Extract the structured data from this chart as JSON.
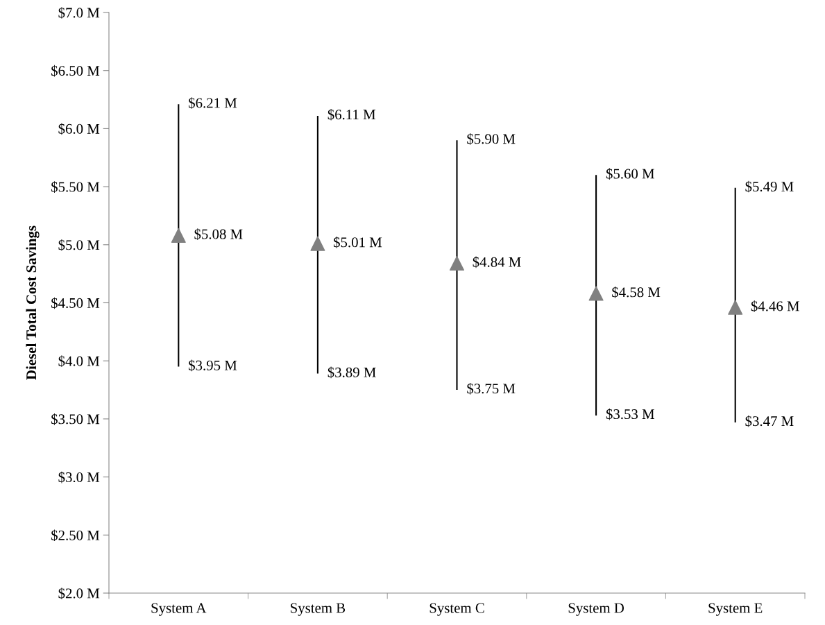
{
  "chart_data": {
    "type": "scatter",
    "ylabel": "Diesel Total Cost Savings",
    "categories": [
      "System A",
      "System B",
      "System C",
      "System D",
      "System E"
    ],
    "series": [
      {
        "color": "#808080",
        "values": [
          5.08,
          5.01,
          4.84,
          4.58,
          4.46
        ],
        "value_labels": [
          "$5.08 M",
          "$5.01 M",
          "$4.84 M",
          "$4.58 M",
          "$4.46 M"
        ],
        "errors": [
          [
            3.95,
            6.21
          ],
          [
            3.89,
            6.11
          ],
          [
            3.75,
            5.9
          ],
          [
            3.53,
            5.6
          ],
          [
            3.47,
            5.49
          ]
        ]
      }
    ],
    "marker": "triangle",
    "annotations": [
      {
        "text": "$6.21 M",
        "x": "System A",
        "y": 6.21
      },
      {
        "text": "$3.95 M",
        "x": "System A",
        "y": 3.95
      },
      {
        "text": "$6.11 M",
        "x": "System B",
        "y": 6.11
      },
      {
        "text": "$3.89 M",
        "x": "System B",
        "y": 3.89
      },
      {
        "text": "$5.90 M",
        "x": "System C",
        "y": 5.9
      },
      {
        "text": "$3.75 M",
        "x": "System C",
        "y": 3.75
      },
      {
        "text": "$5.60 M",
        "x": "System D",
        "y": 5.6
      },
      {
        "text": "$3.53 M",
        "x": "System D",
        "y": 3.53
      },
      {
        "text": "$5.49 M",
        "x": "System E",
        "y": 5.49
      },
      {
        "text": "$3.47 M",
        "x": "System E",
        "y": 3.47
      }
    ],
    "ylim": [
      2,
      7
    ],
    "yticks": [
      {
        "value": 2,
        "label": "$2.0 M"
      },
      {
        "value": 2.5,
        "label": "$2.50 M"
      },
      {
        "value": 3,
        "label": "$3.0 M"
      },
      {
        "value": 3.5,
        "label": "$3.50 M"
      },
      {
        "value": 4,
        "label": "$4.0 M"
      },
      {
        "value": 4.5,
        "label": "$4.50 M"
      },
      {
        "value": 5,
        "label": "$5.0 M"
      },
      {
        "value": 5.5,
        "label": "$5.50 M"
      },
      {
        "value": 6,
        "label": "$6.0 M"
      },
      {
        "value": 6.5,
        "label": "$6.50 M"
      },
      {
        "value": 7,
        "label": "$7.0 M"
      }
    ],
    "grid": false
  }
}
